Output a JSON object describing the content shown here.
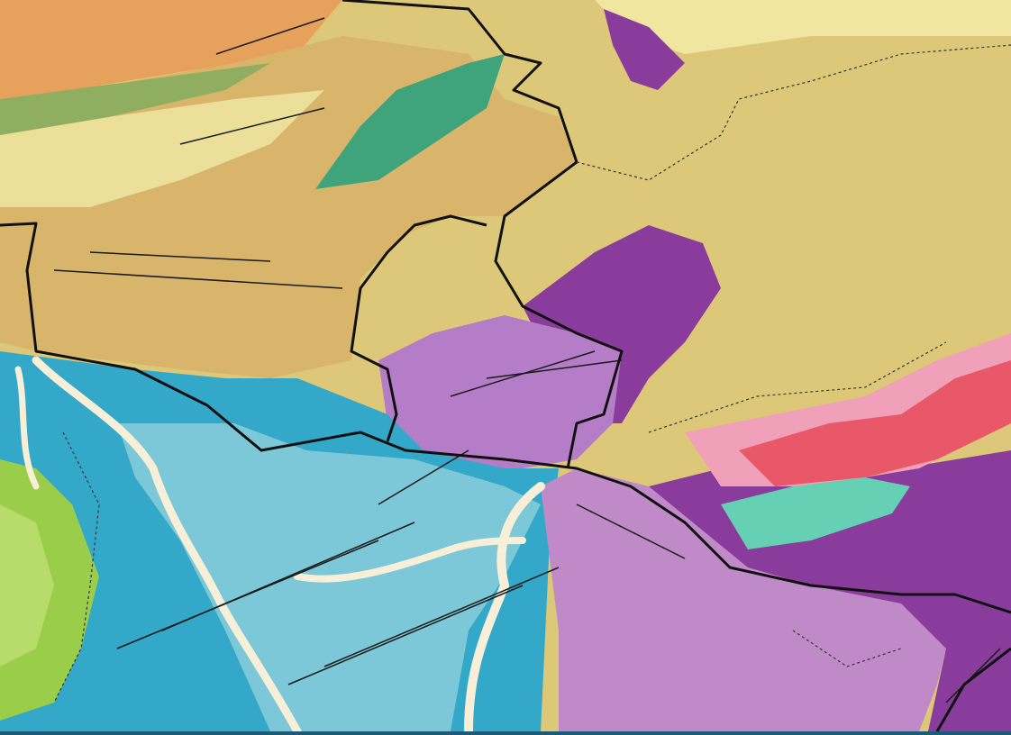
{
  "map": {
    "kind": "geological map",
    "colors": {
      "loess_tan": "#d8b56a",
      "plateau_khaki": "#dcc878",
      "orange_west": "#e6a25c",
      "pale_yellow": "#f0e6a0",
      "green_belt": "#3fa37c",
      "olive_green": "#8fae60",
      "lime_green": "#9acd4a",
      "cyan_basin": "#33a8c8",
      "light_cyan": "#7cc8d8",
      "purple": "#8a3c9c",
      "lilac": "#c08ac8",
      "pink": "#f0a0b8",
      "red_coral": "#e85868",
      "turquoise": "#66d0b4",
      "river_cream": "#f7efd8",
      "boundary": "#111111",
      "fault": "#1a1a1a",
      "bottom_bar": "#1d5a78"
    }
  }
}
